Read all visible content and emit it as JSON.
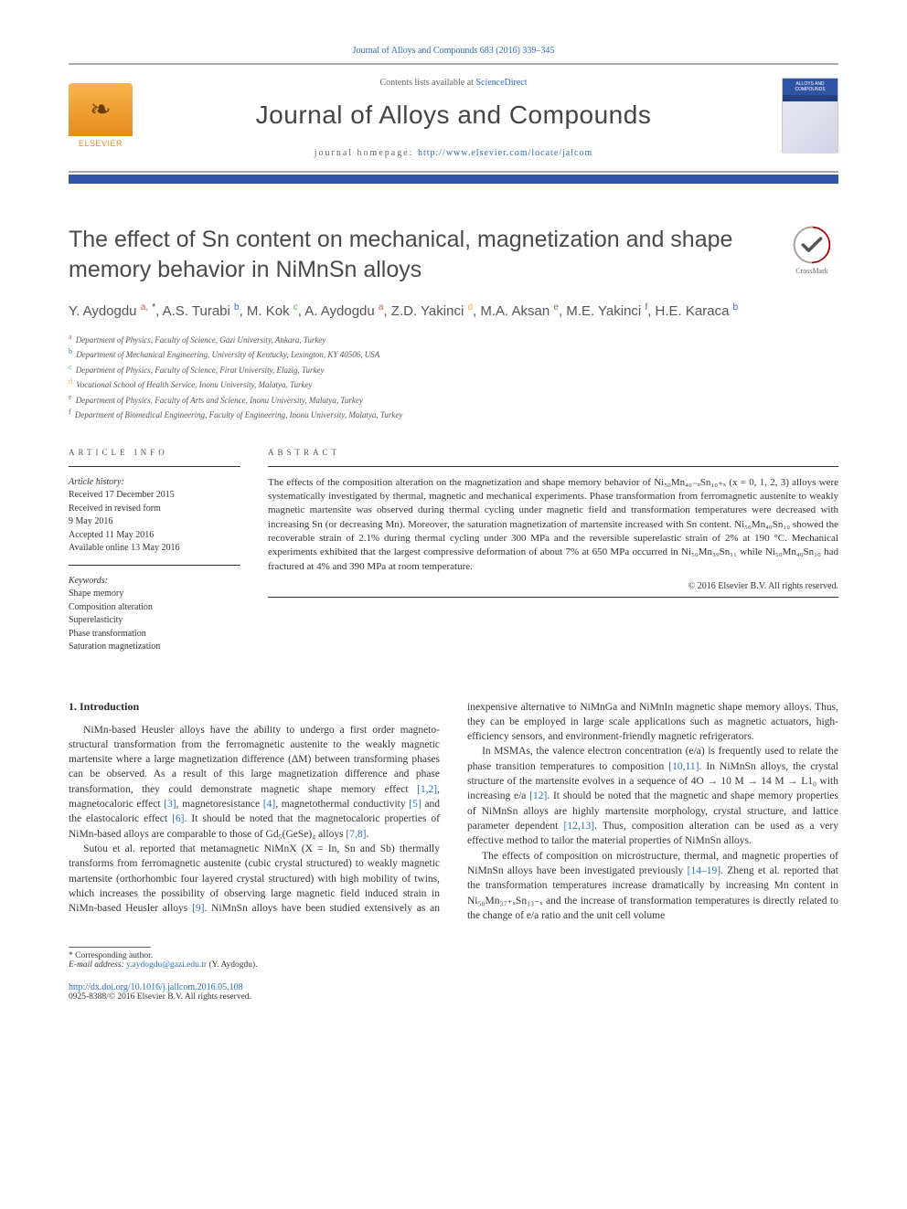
{
  "citation": "Journal of Alloys and Compounds 683 (2016) 339–345",
  "header": {
    "contents_prefix": "Contents lists available at ",
    "contents_link": "ScienceDirect",
    "journal_name": "Journal of Alloys and Compounds",
    "homepage_label": "journal homepage: ",
    "homepage_url": "http://www.elsevier.com/locate/jalcom",
    "publisher": "ELSEVIER",
    "cover_text": "ALLOYS AND COMPOUNDS"
  },
  "colors": {
    "link": "#2a6ebb",
    "bar": "#3054a5",
    "elsevier_orange": "#e88b1f"
  },
  "crossmark_label": "CrossMark",
  "title": "The effect of Sn content on mechanical, magnetization and shape memory behavior in NiMnSn alloys",
  "authors_html": "Y. Aydogdu <sup class='sup-a'>a,</sup> <sup class='sup-star'>*</sup>, A.S. Turabi <sup class='sup-b'>b</sup>, M. Kok <sup class='sup-c'>c</sup>, A. Aydogdu <sup class='sup-a'>a</sup>, Z.D. Yakinci <sup class='sup-d'>d</sup>, M.A. Aksan <sup class='sup-e'>e</sup>, M.E. Yakinci <sup class='sup-f'>f</sup>, H.E. Karaca <sup class='sup-b'>b</sup>",
  "affiliations": [
    {
      "key": "a",
      "cls": "sup-a",
      "text": "Department of Physics, Faculty of Science, Gazi University, Ankara, Turkey"
    },
    {
      "key": "b",
      "cls": "sup-b",
      "text": "Department of Mechanical Engineering, University of Kentucky, Lexington, KY 40506, USA"
    },
    {
      "key": "c",
      "cls": "sup-c",
      "text": "Department of Physics, Faculty of Science, Firat University, Elazig, Turkey"
    },
    {
      "key": "d",
      "cls": "sup-d",
      "text": "Vocational School of Health Service, Inonu University, Malatya, Turkey"
    },
    {
      "key": "e",
      "cls": "sup-e",
      "text": "Department of Physics, Faculty of Arts and Science, Inonu University, Malatya, Turkey"
    },
    {
      "key": "f",
      "cls": "sup-f",
      "text": "Department of Biomedical Engineering, Faculty of Engineering, Inonu University, Malatya, Turkey"
    }
  ],
  "info": {
    "label": "ARTICLE INFO",
    "history_label": "Article history:",
    "history": [
      "Received 17 December 2015",
      "Received in revised form",
      "9 May 2016",
      "Accepted 11 May 2016",
      "Available online 13 May 2016"
    ],
    "keywords_label": "Keywords:",
    "keywords": [
      "Shape memory",
      "Composition alteration",
      "Superelasticity",
      "Phase transformation",
      "Saturation magnetization"
    ]
  },
  "abstract": {
    "label": "ABSTRACT",
    "text": "The effects of the composition alteration on the magnetization and shape memory behavior of Ni₅₀Mn₄₀₋ₓSn₁₀₊ₓ (x = 0, 1, 2, 3) alloys were systematically investigated by thermal, magnetic and mechanical experiments. Phase transformation from ferromagnetic austenite to weakly magnetic martensite was observed during thermal cycling under magnetic field and transformation temperatures were decreased with increasing Sn (or decreasing Mn). Moreover, the saturation magnetization of martensite increased with Sn content. Ni₅₀Mn₄₀Sn₁₀ showed the recoverable strain of 2.1% during thermal cycling under 300 MPa and the reversible superelastic strain of 2% at 190 °C. Mechanical experiments exhibited that the largest compressive deformation of about 7% at 650 MPa occurred in Ni₅₀Mn₃₉Sn₁₁ while Ni₅₀Mn₄₀Sn₁₀ had fractured at 4% and 390 MPa at room temperature.",
    "copyright": "© 2016 Elsevier B.V. All rights reserved."
  },
  "body": {
    "section_heading": "1. Introduction",
    "paragraphs": [
      "NiMn-based Heusler alloys have the ability to undergo a first order magneto-structural transformation from the ferromagnetic austenite to the weakly magnetic martensite where a large magnetization difference (ΔM) between transforming phases can be observed. As a result of this large magnetization difference and phase transformation, they could demonstrate magnetic shape memory effect <a>[1,2]</a>, magnetocaloric effect <a>[3]</a>, magnetoresistance <a>[4]</a>, magnetothermal conductivity <a>[5]</a> and the elastocaloric effect <a>[6]</a>. It should be noted that the magnetocaloric properties of NiMn-based alloys are comparable to those of Gd₅(GeSe)₄ alloys <a>[7,8]</a>.",
      "Sutou et al. reported that metamagnetic NiMnX (X = In, Sn and Sb) thermally transforms from ferromagnetic austenite (cubic crystal structured) to weakly magnetic martensite (orthorhombic four layered crystal structured) with high mobility of twins, which increases the possibility of observing large magnetic field induced strain in NiMn-based Heusler alloys <a>[9]</a>. NiMnSn alloys have been studied extensively as an inexpensive alternative to NiMnGa and NiMnIn magnetic shape memory alloys. Thus, they can be employed in large scale applications such as magnetic actuators, high-efficiency sensors, and environment-friendly magnetic refrigerators.",
      "In MSMAs, the valence electron concentration (e/a) is frequently used to relate the phase transition temperatures to composition <a>[10,11]</a>. In NiMnSn alloys, the crystal structure of the martensite evolves in a sequence of 4O → 10 M → 14 M → L1₀ with increasing e/a <a>[12]</a>. It should be noted that the magnetic and shape memory properties of NiMnSn alloys are highly martensite morphology, crystal structure, and lattice parameter dependent <a>[12,13]</a>. Thus, composition alteration can be used as a very effective method to tailor the material properties of NiMnSn alloys.",
      "The effects of composition on microstructure, thermal, and magnetic properties of NiMnSn alloys have been investigated previously <a>[14–19]</a>. Zheng et al. reported that the transformation temperatures increase dramatically by increasing Mn content in Ni₅₀Mn₃₇₊ₓSn₁₃₋ₓ and the increase of transformation temperatures is directly related to the change of e/a ratio and the unit cell volume"
    ]
  },
  "footer": {
    "corr_label": "* Corresponding author.",
    "email_label": "E-mail address: ",
    "email": "y.aydogdu@gazi.edu.tr",
    "email_who": " (Y. Aydogdu).",
    "doi": "http://dx.doi.org/10.1016/j.jallcom.2016.05.108",
    "issn_line": "0925-8388/© 2016 Elsevier B.V. All rights reserved."
  }
}
